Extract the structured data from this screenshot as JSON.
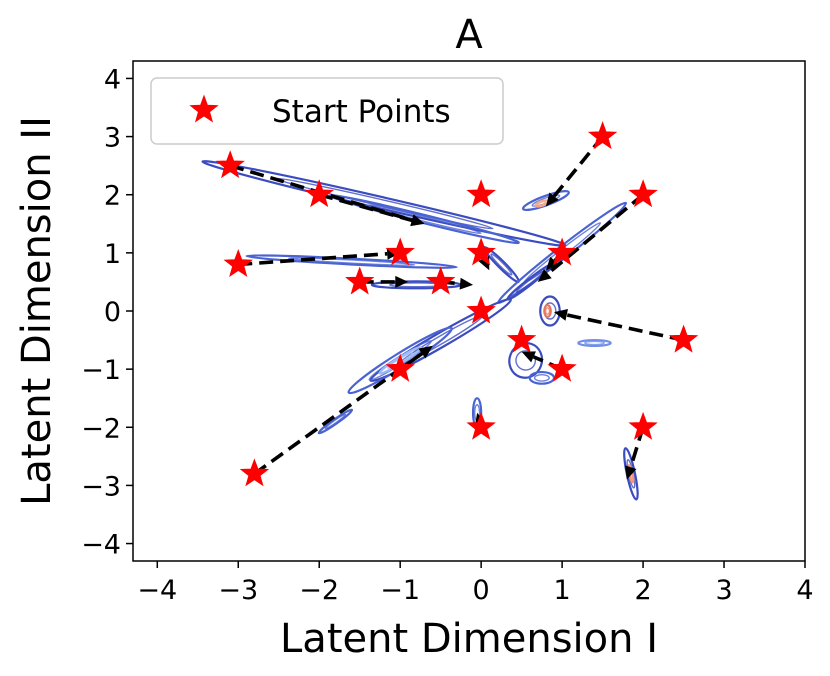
{
  "chart_data": {
    "type": "scatter",
    "title": "A",
    "xlabel": "Latent Dimension I",
    "ylabel": "Latent Dimension II",
    "xlim": [
      -4.3,
      4.0
    ],
    "ylim": [
      -4.3,
      4.3
    ],
    "xticks": [
      -4,
      -3,
      -2,
      -1,
      0,
      1,
      2,
      3,
      4
    ],
    "yticks": [
      -4,
      -3,
      -2,
      -1,
      0,
      1,
      2,
      3,
      4
    ],
    "grid": false,
    "legend": {
      "position": "top-left",
      "entries": [
        "Start Points"
      ]
    },
    "series": [
      {
        "name": "Start Points",
        "marker": "star",
        "color": "#ff0000",
        "points": [
          [
            1.5,
            3.0
          ],
          [
            -3.1,
            2.5
          ],
          [
            -2.0,
            2.0
          ],
          [
            0.0,
            2.0
          ],
          [
            2.0,
            2.0
          ],
          [
            -3.0,
            0.8
          ],
          [
            -1.0,
            1.0
          ],
          [
            0.0,
            1.0
          ],
          [
            1.0,
            1.0
          ],
          [
            -1.5,
            0.5
          ],
          [
            -0.5,
            0.5
          ],
          [
            0.0,
            0.0
          ],
          [
            2.5,
            -0.5
          ],
          [
            0.5,
            -0.5
          ],
          [
            -1.0,
            -1.0
          ],
          [
            1.0,
            -1.0
          ],
          [
            0.0,
            -2.0
          ],
          [
            2.0,
            -2.0
          ],
          [
            -2.8,
            -2.8
          ]
        ]
      }
    ],
    "trajectories": [
      {
        "from": [
          1.5,
          3.0
        ],
        "to": [
          0.8,
          1.8
        ]
      },
      {
        "from": [
          -3.1,
          2.5
        ],
        "to": [
          -0.7,
          1.5
        ]
      },
      {
        "from": [
          -2.0,
          2.0
        ],
        "to": [
          -0.7,
          1.5
        ]
      },
      {
        "from": [
          0.0,
          1.0
        ],
        "to": [
          0.1,
          0.7
        ]
      },
      {
        "from": [
          2.0,
          2.0
        ],
        "to": [
          0.7,
          0.5
        ]
      },
      {
        "from": [
          1.0,
          1.0
        ],
        "to": [
          0.8,
          0.7
        ]
      },
      {
        "from": [
          -3.0,
          0.8
        ],
        "to": [
          -1.0,
          1.0
        ]
      },
      {
        "from": [
          -1.5,
          0.5
        ],
        "to": [
          -0.9,
          0.5
        ]
      },
      {
        "from": [
          -0.5,
          0.5
        ],
        "to": [
          -0.1,
          0.45
        ]
      },
      {
        "from": [
          2.5,
          -0.5
        ],
        "to": [
          0.9,
          -0.02
        ]
      },
      {
        "from": [
          1.0,
          -1.0
        ],
        "to": [
          0.5,
          -0.7
        ]
      },
      {
        "from": [
          -1.0,
          -1.0
        ],
        "to": [
          -0.6,
          -0.6
        ]
      },
      {
        "from": [
          -2.8,
          -2.8
        ],
        "to": [
          -0.6,
          -0.6
        ]
      },
      {
        "from": [
          0.0,
          -2.0
        ],
        "to": [
          -0.05,
          -1.75
        ]
      },
      {
        "from": [
          2.0,
          -2.0
        ],
        "to": [
          1.8,
          -2.9
        ]
      }
    ],
    "density_contours": {
      "colormap": "coolwarm",
      "blobs": [
        {
          "cx": -1.2,
          "cy": 1.85,
          "rx": 2.3,
          "ry": 0.1,
          "angle": -13,
          "color": "#3b4cc0"
        },
        {
          "cx": -0.7,
          "cy": 1.58,
          "rx": 1.2,
          "ry": 0.07,
          "angle": -14,
          "color": "#4a63d3"
        },
        {
          "cx": 0.25,
          "cy": 0.8,
          "rx": 0.3,
          "ry": 0.06,
          "angle": -45,
          "color": "#3b4cc0"
        },
        {
          "cx": 0.8,
          "cy": 1.9,
          "rx": 0.3,
          "ry": 0.08,
          "angle": 20,
          "color": "#4a63d3"
        },
        {
          "cx": 0.75,
          "cy": 1.85,
          "rx": 0.08,
          "ry": 0.04,
          "angle": 20,
          "color": "#f7a889"
        },
        {
          "cx": 1.0,
          "cy": 1.0,
          "rx": 1.0,
          "ry": 0.1,
          "angle": 38,
          "color": "#4a63d3"
        },
        {
          "cx": 0.6,
          "cy": 0.5,
          "rx": 0.35,
          "ry": 0.05,
          "angle": 38,
          "color": "#3b4cc0"
        },
        {
          "cx": -1.6,
          "cy": 0.85,
          "rx": 1.3,
          "ry": 0.05,
          "angle": -3,
          "color": "#4a63d3"
        },
        {
          "cx": -0.8,
          "cy": 0.45,
          "rx": 0.55,
          "ry": 0.06,
          "angle": 0,
          "color": "#3b4cc0"
        },
        {
          "cx": -0.5,
          "cy": -0.5,
          "rx": 1.0,
          "ry": 0.12,
          "angle": 30,
          "color": "#3b4cc0"
        },
        {
          "cx": -1.0,
          "cy": -0.85,
          "rx": 0.75,
          "ry": 0.12,
          "angle": 32,
          "color": "#4a63d3"
        },
        {
          "cx": -1.0,
          "cy": -0.85,
          "rx": 0.3,
          "ry": 0.05,
          "angle": 32,
          "color": "#9db9f7"
        },
        {
          "cx": -1.8,
          "cy": -1.9,
          "rx": 0.25,
          "ry": 0.04,
          "angle": 35,
          "color": "#4a63d3"
        },
        {
          "cx": 0.85,
          "cy": 0.0,
          "rx": 0.12,
          "ry": 0.25,
          "angle": 0,
          "color": "#3b4cc0"
        },
        {
          "cx": 0.82,
          "cy": 0.0,
          "rx": 0.04,
          "ry": 0.1,
          "angle": 0,
          "color": "#e8765c"
        },
        {
          "cx": 0.55,
          "cy": -0.85,
          "rx": 0.2,
          "ry": 0.3,
          "angle": -20,
          "color": "#3b4cc0"
        },
        {
          "cx": 0.75,
          "cy": -1.15,
          "rx": 0.15,
          "ry": 0.1,
          "angle": 0,
          "color": "#4a63d3"
        },
        {
          "cx": 1.4,
          "cy": -0.55,
          "rx": 0.2,
          "ry": 0.05,
          "angle": 0,
          "color": "#6f8ee8"
        },
        {
          "cx": -0.05,
          "cy": -1.75,
          "rx": 0.05,
          "ry": 0.25,
          "angle": 0,
          "color": "#4a63d3"
        },
        {
          "cx": 1.85,
          "cy": -2.8,
          "rx": 0.05,
          "ry": 0.45,
          "angle": 12,
          "color": "#3b4cc0"
        },
        {
          "cx": 1.85,
          "cy": -2.8,
          "rx": 0.02,
          "ry": 0.15,
          "angle": 12,
          "color": "#f4987a"
        }
      ]
    }
  }
}
